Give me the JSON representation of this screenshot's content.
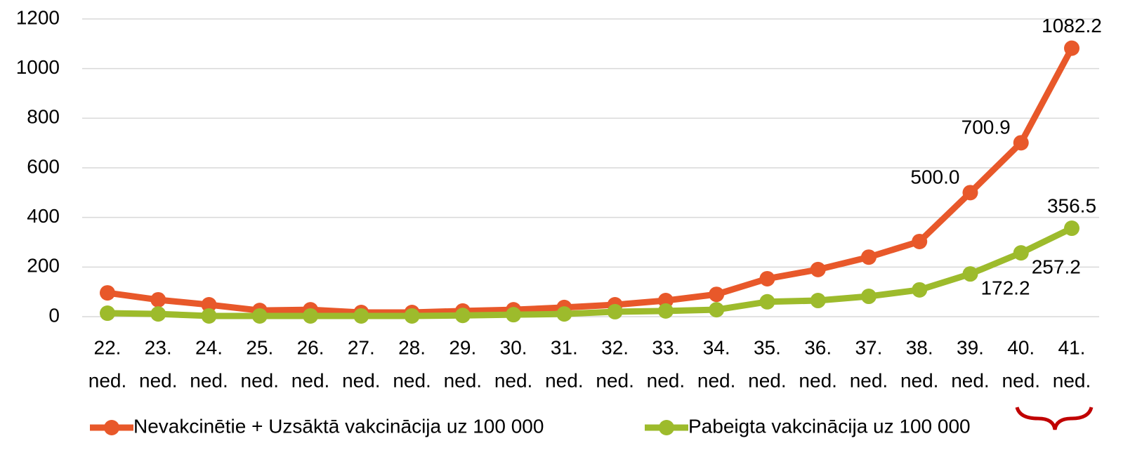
{
  "chart_data": {
    "type": "line",
    "categories": [
      [
        "22.",
        "ned."
      ],
      [
        "23.",
        "ned."
      ],
      [
        "24.",
        "ned."
      ],
      [
        "25.",
        "ned."
      ],
      [
        "26.",
        "ned."
      ],
      [
        "27.",
        "ned."
      ],
      [
        "28.",
        "ned."
      ],
      [
        "29.",
        "ned."
      ],
      [
        "30.",
        "ned."
      ],
      [
        "31.",
        "ned."
      ],
      [
        "32.",
        "ned."
      ],
      [
        "33.",
        "ned."
      ],
      [
        "34.",
        "ned."
      ],
      [
        "35.",
        "ned."
      ],
      [
        "36.",
        "ned."
      ],
      [
        "37.",
        "ned."
      ],
      [
        "38.",
        "ned."
      ],
      [
        "39.",
        "ned."
      ],
      [
        "40.",
        "ned."
      ],
      [
        "41.",
        "ned."
      ]
    ],
    "series": [
      {
        "name": "Nevakcinētie +  Uzsāktā vakcinācija uz 100 000",
        "color": "#e8582a",
        "values": [
          96,
          68,
          48,
          25,
          28,
          17,
          17,
          23,
          28,
          37,
          48,
          65,
          90,
          153,
          190,
          240,
          303,
          500.0,
          700.9,
          1082.2
        ],
        "value_labels": [
          null,
          null,
          null,
          null,
          null,
          null,
          null,
          null,
          null,
          null,
          null,
          null,
          null,
          null,
          null,
          null,
          null,
          "500.0",
          "700.9",
          "1082.2"
        ]
      },
      {
        "name": "Pabeigta vakcinācija uz 100 000",
        "color": "#9dbb2c",
        "values": [
          14,
          11,
          3,
          3,
          3,
          3,
          3,
          5,
          8,
          11,
          20,
          23,
          28,
          60,
          65,
          82,
          108,
          172.2,
          257.2,
          356.5
        ],
        "value_labels": [
          null,
          null,
          null,
          null,
          null,
          null,
          null,
          null,
          null,
          null,
          null,
          null,
          null,
          null,
          null,
          null,
          null,
          "172.2",
          "257.2",
          "356.5"
        ]
      }
    ],
    "ylim": [
      0,
      1200
    ],
    "yticks": [
      0,
      200,
      400,
      600,
      800,
      1000,
      1200
    ],
    "grid": true,
    "legend": "bottom"
  }
}
